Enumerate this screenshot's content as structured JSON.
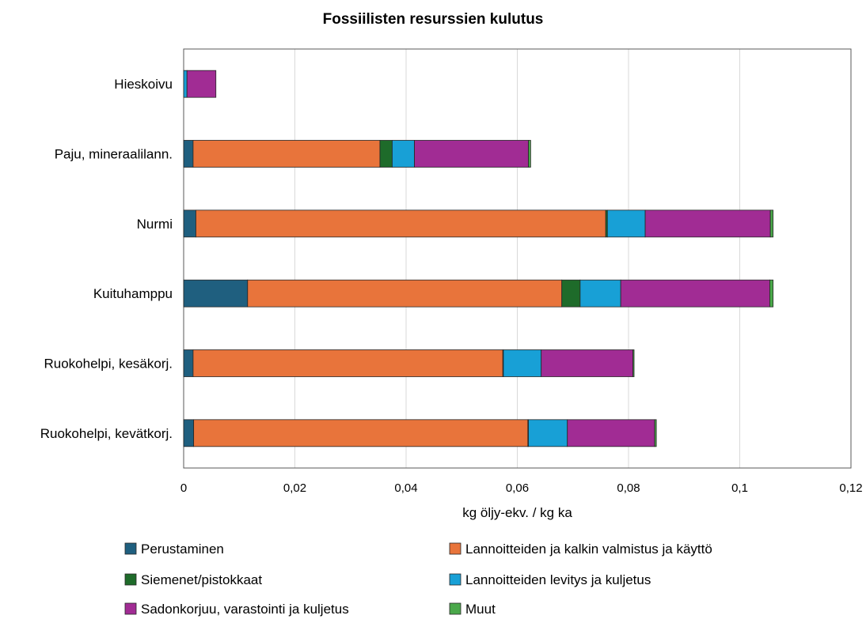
{
  "chart_data": {
    "type": "bar",
    "orientation": "horizontal",
    "stacked": true,
    "title": "Fossiilisten resurssien kulutus",
    "xlabel": "kg öljy-ekv. / kg ka",
    "ylabel": "",
    "xlim": [
      0,
      0.12
    ],
    "xticks": [
      "0",
      "0,02",
      "0,04",
      "0,06",
      "0,08",
      "0,1",
      "0,12"
    ],
    "grid": true,
    "legend_position": "bottom",
    "categories": [
      "Hieskoivu",
      "Paju, mineraalilann.",
      "Nurmi",
      "Kuituhamppu",
      "Ruokohelpi, kesäkorj.",
      "Ruokohelpi, kevätkorj."
    ],
    "series": [
      {
        "name": "Perustaminen",
        "color": "#1f5f7f",
        "values": [
          0.0,
          0.0017,
          0.0022,
          0.0115,
          0.0017,
          0.0018
        ]
      },
      {
        "name": "Lannoitteiden ja kalkin valmistus ja käyttö",
        "color": "#e8743b",
        "values": [
          0.0,
          0.0336,
          0.0737,
          0.0565,
          0.0557,
          0.0601
        ]
      },
      {
        "name": "Siemenet/pistokkaat",
        "color": "#1e6b2a",
        "values": [
          0.0,
          0.0022,
          0.0003,
          0.0033,
          0.0001,
          0.0001
        ]
      },
      {
        "name": "Lannoitteiden levitys ja kuljetus",
        "color": "#18a0d6",
        "values": [
          0.0006,
          0.004,
          0.0068,
          0.0073,
          0.0068,
          0.007
        ]
      },
      {
        "name": "Sadonkorjuu, varastointi ja kuljetus",
        "color": "#a12c94",
        "values": [
          0.0052,
          0.0205,
          0.0225,
          0.0268,
          0.0165,
          0.0157
        ]
      },
      {
        "name": "Muut",
        "color": "#4aa84a",
        "values": [
          0.0,
          0.0004,
          0.0005,
          0.0006,
          0.0002,
          0.0003
        ]
      }
    ]
  }
}
